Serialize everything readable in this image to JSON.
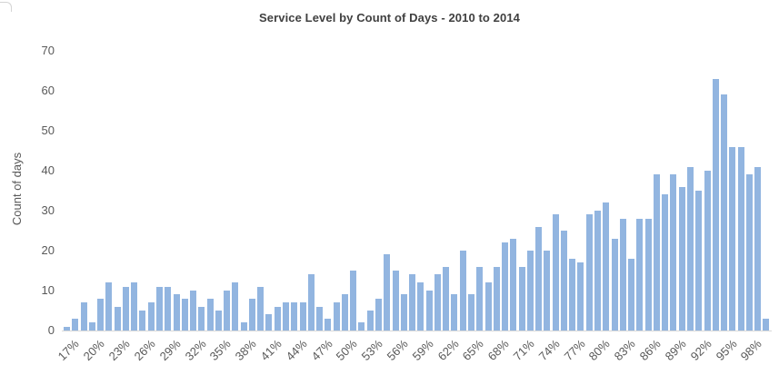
{
  "chart": {
    "title": "Service Level by Count of Days - 2010 to 2014",
    "y_axis_title": "Count of days"
  },
  "colors": {
    "bar": "#92B5E0",
    "title_text": "#404040",
    "axis_text": "#595959",
    "axis_line": "#D9D9D9"
  },
  "chart_data": {
    "type": "bar",
    "title": "Service Level by Count of Days - 2010 to 2014",
    "xlabel": "",
    "ylabel": "Count of days",
    "ylim": [
      0,
      70
    ],
    "y_ticks": [
      0,
      10,
      20,
      30,
      40,
      50,
      60,
      70
    ],
    "x_tick_label_interval": 3,
    "grid": false,
    "legend": false,
    "categories": [
      "17%",
      "18%",
      "19%",
      "20%",
      "21%",
      "22%",
      "23%",
      "24%",
      "25%",
      "26%",
      "27%",
      "28%",
      "29%",
      "30%",
      "31%",
      "32%",
      "33%",
      "34%",
      "35%",
      "36%",
      "37%",
      "38%",
      "39%",
      "40%",
      "41%",
      "42%",
      "43%",
      "44%",
      "45%",
      "46%",
      "47%",
      "48%",
      "49%",
      "50%",
      "51%",
      "52%",
      "53%",
      "54%",
      "55%",
      "56%",
      "57%",
      "58%",
      "59%",
      "60%",
      "61%",
      "62%",
      "63%",
      "64%",
      "65%",
      "66%",
      "67%",
      "68%",
      "69%",
      "70%",
      "71%",
      "72%",
      "73%",
      "74%",
      "75%",
      "76%",
      "77%",
      "78%",
      "79%",
      "80%",
      "81%",
      "82%",
      "83%",
      "84%",
      "85%",
      "86%",
      "87%",
      "88%",
      "89%",
      "90%",
      "91%",
      "92%",
      "93%",
      "94%",
      "95%",
      "96%",
      "97%",
      "98%",
      "99%",
      "100%"
    ],
    "values": [
      1,
      3,
      7,
      2,
      8,
      12,
      6,
      11,
      12,
      5,
      7,
      11,
      11,
      9,
      8,
      10,
      6,
      8,
      5,
      10,
      12,
      2,
      8,
      11,
      4,
      6,
      7,
      7,
      7,
      14,
      6,
      3,
      7,
      9,
      15,
      2,
      5,
      8,
      19,
      15,
      9,
      14,
      12,
      10,
      14,
      16,
      9,
      20,
      9,
      16,
      12,
      16,
      22,
      23,
      16,
      20,
      26,
      20,
      29,
      25,
      18,
      17,
      29,
      30,
      32,
      23,
      28,
      18,
      28,
      28,
      39,
      34,
      39,
      36,
      41,
      35,
      40,
      63,
      59,
      46,
      46,
      39,
      41,
      3
    ]
  }
}
